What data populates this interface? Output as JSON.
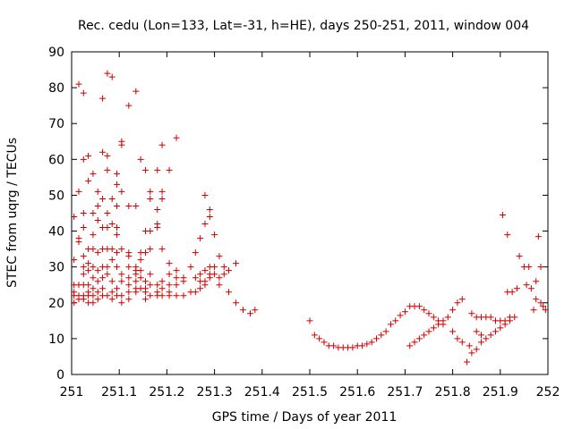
{
  "chart_data": {
    "type": "scatter",
    "title": "Rec. cedu (Lon=133, Lat=-31, h=HE), days 250-251, 2011, window 004",
    "xlabel": "GPS time / Days of year 2011",
    "ylabel": "STEC from uqrg / TECUs",
    "xlim": [
      251,
      252
    ],
    "ylim": [
      0,
      90
    ],
    "x_ticks": [
      "251",
      "251.1",
      "251.2",
      "251.3",
      "251.4",
      "251.5",
      "251.6",
      "251.7",
      "251.8",
      "251.9",
      "252"
    ],
    "y_ticks": [
      "0",
      "10",
      "20",
      "30",
      "40",
      "50",
      "60",
      "70",
      "80",
      "90"
    ],
    "grid": false,
    "marker": "+",
    "color": "#cc0000",
    "series": [
      {
        "points": [
          [
            251.005,
            44
          ],
          [
            251.005,
            32
          ],
          [
            251.005,
            25
          ],
          [
            251.005,
            23
          ],
          [
            251.005,
            22
          ],
          [
            251.005,
            20
          ],
          [
            251.015,
            81
          ],
          [
            251.015,
            51
          ],
          [
            251.015,
            38
          ],
          [
            251.015,
            37
          ],
          [
            251.015,
            25
          ],
          [
            251.015,
            22
          ],
          [
            251.015,
            21
          ],
          [
            251.025,
            78.5
          ],
          [
            251.025,
            60
          ],
          [
            251.025,
            45
          ],
          [
            251.025,
            41
          ],
          [
            251.025,
            33
          ],
          [
            251.025,
            30
          ],
          [
            251.025,
            28
          ],
          [
            251.025,
            25
          ],
          [
            251.025,
            22
          ],
          [
            251.025,
            21
          ],
          [
            251.035,
            61
          ],
          [
            251.035,
            54
          ],
          [
            251.035,
            35
          ],
          [
            251.035,
            31
          ],
          [
            251.035,
            29
          ],
          [
            251.035,
            25
          ],
          [
            251.035,
            23
          ],
          [
            251.035,
            22
          ],
          [
            251.035,
            20
          ],
          [
            251.045,
            56
          ],
          [
            251.045,
            45
          ],
          [
            251.045,
            39
          ],
          [
            251.045,
            35
          ],
          [
            251.045,
            30
          ],
          [
            251.045,
            27
          ],
          [
            251.045,
            24
          ],
          [
            251.045,
            22
          ],
          [
            251.045,
            20
          ],
          [
            251.055,
            51
          ],
          [
            251.055,
            47
          ],
          [
            251.055,
            43
          ],
          [
            251.055,
            34
          ],
          [
            251.055,
            29
          ],
          [
            251.055,
            26
          ],
          [
            251.055,
            23
          ],
          [
            251.055,
            21
          ],
          [
            251.065,
            77
          ],
          [
            251.065,
            62
          ],
          [
            251.065,
            49
          ],
          [
            251.065,
            41
          ],
          [
            251.065,
            35
          ],
          [
            251.065,
            30
          ],
          [
            251.065,
            27
          ],
          [
            251.065,
            24
          ],
          [
            251.065,
            22
          ],
          [
            251.075,
            84
          ],
          [
            251.075,
            61
          ],
          [
            251.075,
            57
          ],
          [
            251.075,
            45
          ],
          [
            251.075,
            41
          ],
          [
            251.075,
            35
          ],
          [
            251.075,
            30
          ],
          [
            251.075,
            28
          ],
          [
            251.075,
            22
          ],
          [
            251.085,
            83
          ],
          [
            251.085,
            49
          ],
          [
            251.085,
            42
          ],
          [
            251.085,
            35
          ],
          [
            251.085,
            32
          ],
          [
            251.085,
            26
          ],
          [
            251.085,
            23
          ],
          [
            251.085,
            21
          ],
          [
            251.095,
            56
          ],
          [
            251.095,
            53
          ],
          [
            251.095,
            47
          ],
          [
            251.095,
            41
          ],
          [
            251.095,
            39
          ],
          [
            251.095,
            34
          ],
          [
            251.095,
            30
          ],
          [
            251.095,
            24
          ],
          [
            251.095,
            22
          ],
          [
            251.105,
            65
          ],
          [
            251.105,
            64
          ],
          [
            251.105,
            51
          ],
          [
            251.105,
            35
          ],
          [
            251.105,
            28
          ],
          [
            251.105,
            26
          ],
          [
            251.105,
            22
          ],
          [
            251.105,
            20
          ],
          [
            251.12,
            75
          ],
          [
            251.12,
            47
          ],
          [
            251.12,
            34
          ],
          [
            251.12,
            33
          ],
          [
            251.12,
            30
          ],
          [
            251.12,
            27
          ],
          [
            251.12,
            25
          ],
          [
            251.12,
            23
          ],
          [
            251.12,
            21
          ],
          [
            251.135,
            79
          ],
          [
            251.135,
            47
          ],
          [
            251.135,
            30
          ],
          [
            251.135,
            29
          ],
          [
            251.135,
            28
          ],
          [
            251.135,
            26
          ],
          [
            251.135,
            24
          ],
          [
            251.135,
            23
          ],
          [
            251.145,
            60
          ],
          [
            251.145,
            34
          ],
          [
            251.145,
            32
          ],
          [
            251.145,
            29
          ],
          [
            251.145,
            27
          ],
          [
            251.145,
            24
          ],
          [
            251.155,
            57
          ],
          [
            251.155,
            40
          ],
          [
            251.155,
            34
          ],
          [
            251.155,
            26
          ],
          [
            251.155,
            24
          ],
          [
            251.155,
            23
          ],
          [
            251.155,
            21
          ],
          [
            251.165,
            51
          ],
          [
            251.165,
            49
          ],
          [
            251.165,
            40
          ],
          [
            251.165,
            35
          ],
          [
            251.165,
            28
          ],
          [
            251.165,
            25
          ],
          [
            251.165,
            22
          ],
          [
            251.18,
            57
          ],
          [
            251.18,
            46
          ],
          [
            251.18,
            42
          ],
          [
            251.18,
            41
          ],
          [
            251.18,
            25
          ],
          [
            251.18,
            23
          ],
          [
            251.18,
            22
          ],
          [
            251.19,
            64
          ],
          [
            251.19,
            51
          ],
          [
            251.19,
            49
          ],
          [
            251.19,
            35
          ],
          [
            251.19,
            26
          ],
          [
            251.19,
            24
          ],
          [
            251.19,
            22
          ],
          [
            251.205,
            57
          ],
          [
            251.205,
            31
          ],
          [
            251.205,
            28
          ],
          [
            251.205,
            25
          ],
          [
            251.205,
            23
          ],
          [
            251.205,
            22
          ],
          [
            251.22,
            66
          ],
          [
            251.22,
            29
          ],
          [
            251.22,
            27
          ],
          [
            251.22,
            25
          ],
          [
            251.22,
            22
          ],
          [
            251.235,
            27
          ],
          [
            251.235,
            26
          ],
          [
            251.235,
            22
          ],
          [
            251.25,
            30
          ],
          [
            251.25,
            23
          ],
          [
            251.26,
            34
          ],
          [
            251.26,
            27
          ],
          [
            251.26,
            23
          ],
          [
            251.27,
            38
          ],
          [
            251.27,
            28
          ],
          [
            251.27,
            26
          ],
          [
            251.27,
            24
          ],
          [
            251.28,
            50
          ],
          [
            251.28,
            42
          ],
          [
            251.28,
            29
          ],
          [
            251.28,
            26
          ],
          [
            251.28,
            25
          ],
          [
            251.29,
            46
          ],
          [
            251.29,
            44
          ],
          [
            251.29,
            30
          ],
          [
            251.29,
            28
          ],
          [
            251.29,
            27
          ],
          [
            251.3,
            39
          ],
          [
            251.3,
            30
          ],
          [
            251.3,
            28
          ],
          [
            251.31,
            33
          ],
          [
            251.31,
            27
          ],
          [
            251.31,
            25
          ],
          [
            251.32,
            30
          ],
          [
            251.32,
            28
          ],
          [
            251.33,
            29
          ],
          [
            251.33,
            23
          ],
          [
            251.345,
            31
          ],
          [
            251.345,
            20
          ],
          [
            251.36,
            18
          ],
          [
            251.375,
            17
          ],
          [
            251.385,
            18
          ],
          [
            251.5,
            15
          ],
          [
            251.51,
            11
          ],
          [
            251.52,
            10
          ],
          [
            251.53,
            9
          ],
          [
            251.54,
            8
          ],
          [
            251.55,
            8
          ],
          [
            251.56,
            7.5
          ],
          [
            251.57,
            7.5
          ],
          [
            251.58,
            7.5
          ],
          [
            251.59,
            7.5
          ],
          [
            251.6,
            8
          ],
          [
            251.61,
            8
          ],
          [
            251.62,
            8.5
          ],
          [
            251.63,
            9
          ],
          [
            251.64,
            10
          ],
          [
            251.65,
            11
          ],
          [
            251.66,
            12
          ],
          [
            251.67,
            14
          ],
          [
            251.68,
            15
          ],
          [
            251.69,
            16.5
          ],
          [
            251.7,
            17.5
          ],
          [
            251.71,
            19
          ],
          [
            251.72,
            19
          ],
          [
            251.73,
            19
          ],
          [
            251.74,
            18
          ],
          [
            251.75,
            17
          ],
          [
            251.76,
            16
          ],
          [
            251.77,
            15
          ],
          [
            251.78,
            14
          ],
          [
            251.79,
            16
          ],
          [
            251.8,
            18
          ],
          [
            251.81,
            20
          ],
          [
            251.82,
            21
          ],
          [
            251.71,
            8
          ],
          [
            251.72,
            9
          ],
          [
            251.73,
            10
          ],
          [
            251.74,
            11
          ],
          [
            251.75,
            12
          ],
          [
            251.76,
            13
          ],
          [
            251.77,
            14
          ],
          [
            251.78,
            15
          ],
          [
            251.8,
            12
          ],
          [
            251.81,
            10
          ],
          [
            251.82,
            9
          ],
          [
            251.83,
            3.5
          ],
          [
            251.835,
            8
          ],
          [
            251.84,
            6
          ],
          [
            251.85,
            7
          ],
          [
            251.86,
            9
          ],
          [
            251.84,
            17
          ],
          [
            251.85,
            16
          ],
          [
            251.86,
            16
          ],
          [
            251.87,
            16
          ],
          [
            251.88,
            16
          ],
          [
            251.89,
            15
          ],
          [
            251.9,
            15
          ],
          [
            251.91,
            15
          ],
          [
            251.92,
            16
          ],
          [
            251.85,
            12
          ],
          [
            251.86,
            11
          ],
          [
            251.87,
            10
          ],
          [
            251.88,
            11
          ],
          [
            251.89,
            12
          ],
          [
            251.9,
            13
          ],
          [
            251.91,
            14
          ],
          [
            251.92,
            15
          ],
          [
            251.93,
            16
          ],
          [
            251.905,
            44.5
          ],
          [
            251.915,
            39
          ],
          [
            251.915,
            23
          ],
          [
            251.925,
            23
          ],
          [
            251.935,
            24
          ],
          [
            251.94,
            33
          ],
          [
            251.95,
            30
          ],
          [
            251.955,
            25
          ],
          [
            251.96,
            30
          ],
          [
            251.965,
            24
          ],
          [
            251.97,
            18
          ],
          [
            251.975,
            21
          ],
          [
            251.975,
            26
          ],
          [
            251.98,
            38.5
          ],
          [
            251.985,
            30
          ],
          [
            251.985,
            20
          ],
          [
            251.99,
            19
          ],
          [
            251.995,
            18
          ]
        ]
      }
    ]
  }
}
